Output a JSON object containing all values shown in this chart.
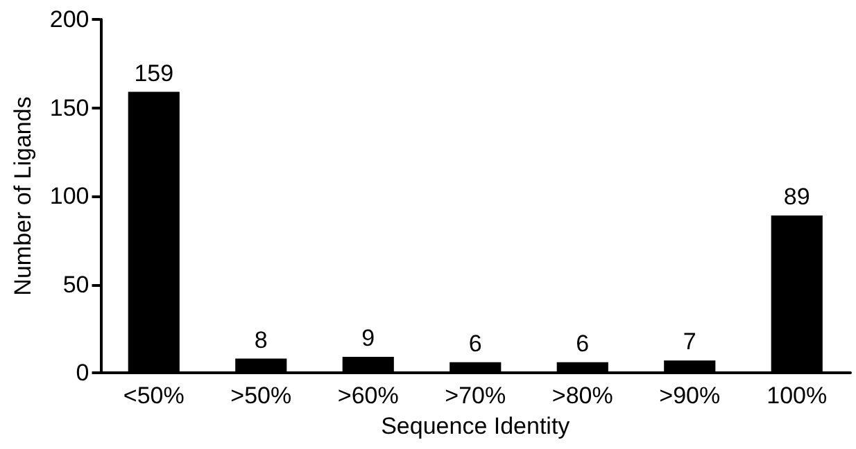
{
  "chart_data": {
    "type": "bar",
    "xlabel": "Sequence Identity",
    "ylabel": "Number of Ligands",
    "categories": [
      "<50%",
      ">50%",
      ">60%",
      ">70%",
      ">80%",
      ">90%",
      "100%"
    ],
    "values": [
      159,
      8,
      9,
      6,
      6,
      7,
      89
    ],
    "color": "#000000",
    "ylim": [
      0,
      200
    ],
    "yticks": [
      0,
      50,
      100,
      150,
      200
    ],
    "grid": false,
    "data_labels": true
  }
}
